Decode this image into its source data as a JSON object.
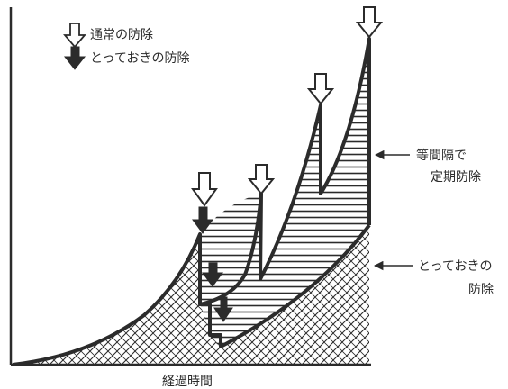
{
  "legend": {
    "normal_label": "通常の防除",
    "reserve_label": "とっておきの防除"
  },
  "annotations": {
    "periodic_line1": "等間隔で",
    "periodic_line2": "定期防除",
    "reserve_line1": "とっておきの",
    "reserve_line2": "防除"
  },
  "axis": {
    "xlabel": "経過時間"
  },
  "colors": {
    "ink": "#2b2b2b",
    "paper": "#ffffff"
  }
}
